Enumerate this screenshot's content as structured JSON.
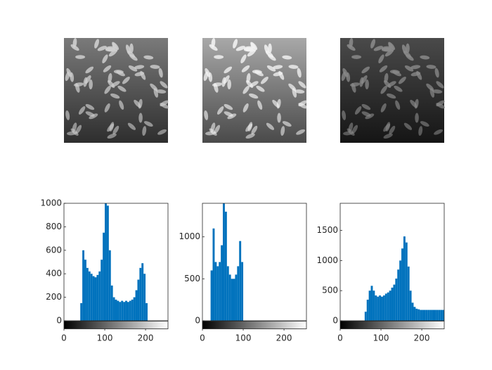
{
  "chart_data": [
    {
      "type": "histogram",
      "color": "#0072bd",
      "bins": [
        0,
        5,
        10,
        15,
        20,
        25,
        30,
        35,
        40,
        45,
        50,
        55,
        60,
        65,
        70,
        75,
        80,
        85,
        90,
        95,
        100,
        105,
        110,
        115,
        120,
        125,
        130,
        135,
        140,
        145,
        150,
        155,
        160,
        165,
        170,
        175,
        180,
        185,
        190,
        195,
        200,
        205,
        210,
        215,
        220,
        225,
        230,
        235,
        240,
        245,
        250,
        255
      ],
      "values": [
        0,
        0,
        0,
        0,
        0,
        0,
        0,
        0,
        150,
        600,
        520,
        450,
        420,
        400,
        380,
        370,
        390,
        420,
        520,
        750,
        1000,
        980,
        600,
        300,
        200,
        180,
        170,
        160,
        170,
        160,
        170,
        160,
        170,
        180,
        200,
        260,
        350,
        450,
        490,
        400,
        150,
        0,
        0,
        0,
        0,
        0,
        0,
        0,
        0,
        0,
        0
      ],
      "xlim": [
        0,
        255
      ],
      "xticks": [
        0,
        100,
        200
      ],
      "ylim": [
        0,
        1000
      ],
      "yticks": [
        0,
        200,
        400,
        600,
        800,
        1000
      ]
    },
    {
      "type": "histogram",
      "color": "#0072bd",
      "bins": [
        0,
        5,
        10,
        15,
        20,
        25,
        30,
        35,
        40,
        45,
        50,
        55,
        60,
        65,
        70,
        75,
        80,
        85,
        90,
        95,
        100,
        105,
        110,
        115,
        120,
        125,
        130,
        135,
        140,
        145,
        150,
        155,
        160,
        165,
        170,
        175,
        180,
        185,
        190,
        195,
        200,
        205,
        210,
        215,
        220,
        225,
        230,
        235,
        240,
        245,
        250,
        255
      ],
      "values": [
        0,
        0,
        0,
        0,
        600,
        1100,
        700,
        650,
        700,
        900,
        1400,
        1300,
        650,
        550,
        500,
        500,
        550,
        650,
        950,
        700,
        0,
        0,
        0,
        0,
        0,
        0,
        0,
        0,
        0,
        0,
        0,
        0,
        0,
        0,
        0,
        0,
        0,
        0,
        0,
        0,
        0,
        0,
        0,
        0,
        0,
        0,
        0,
        0,
        0,
        0,
        0
      ],
      "xlim": [
        0,
        255
      ],
      "xticks": [
        0,
        100,
        200
      ],
      "ylim": [
        0,
        1400
      ],
      "yticks": [
        0,
        500,
        1000
      ]
    },
    {
      "type": "histogram",
      "color": "#0072bd",
      "bins": [
        0,
        5,
        10,
        15,
        20,
        25,
        30,
        35,
        40,
        45,
        50,
        55,
        60,
        65,
        70,
        75,
        80,
        85,
        90,
        95,
        100,
        105,
        110,
        115,
        120,
        125,
        130,
        135,
        140,
        145,
        150,
        155,
        160,
        165,
        170,
        175,
        180,
        185,
        190,
        195,
        200,
        205,
        210,
        215,
        220,
        225,
        230,
        235,
        240,
        245,
        250,
        255
      ],
      "values": [
        0,
        0,
        0,
        0,
        0,
        0,
        0,
        0,
        0,
        0,
        0,
        0,
        150,
        350,
        500,
        580,
        500,
        420,
        400,
        420,
        400,
        420,
        450,
        470,
        500,
        550,
        600,
        700,
        850,
        1000,
        1200,
        1400,
        1300,
        900,
        500,
        300,
        230,
        200,
        190,
        180,
        180,
        180,
        180,
        180,
        180,
        180,
        180,
        180,
        180,
        180,
        180
      ],
      "xlim": [
        0,
        255
      ],
      "xticks": [
        0,
        100,
        200
      ],
      "ylim": [
        0,
        1950
      ],
      "yticks": [
        0,
        500,
        1000,
        1500
      ]
    }
  ]
}
